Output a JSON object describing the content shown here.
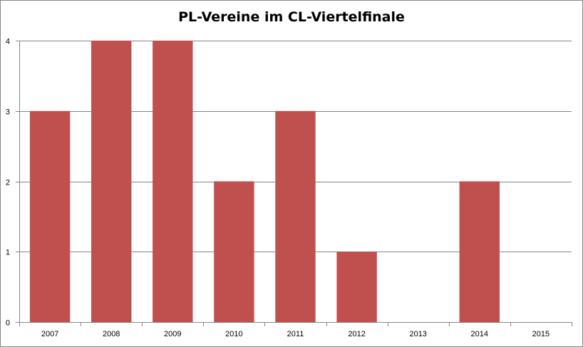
{
  "chart_data": {
    "type": "bar",
    "title": "PL-Vereine im CL-Viertelfinale",
    "xlabel": "",
    "ylabel": "",
    "categories": [
      "2007",
      "2008",
      "2009",
      "2010",
      "2011",
      "2012",
      "2013",
      "2014",
      "2015"
    ],
    "values": [
      3,
      4,
      4,
      2,
      3,
      1,
      0,
      2,
      0
    ],
    "ylim": [
      0,
      4
    ],
    "yticks": [
      "0",
      "1",
      "2",
      "3",
      "4"
    ],
    "grid": true,
    "legend": "none",
    "colors": {
      "bar": "#c0504d",
      "grid": "#868686",
      "axis": "#868686"
    }
  }
}
